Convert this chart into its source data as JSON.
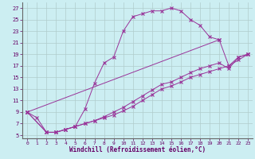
{
  "xlabel": "Windchill (Refroidissement éolien,°C)",
  "xlim": [
    -0.5,
    23.5
  ],
  "ylim": [
    4.5,
    28
  ],
  "yticks": [
    5,
    7,
    9,
    11,
    13,
    15,
    17,
    19,
    21,
    23,
    25,
    27
  ],
  "xticks": [
    0,
    1,
    2,
    3,
    4,
    5,
    6,
    7,
    8,
    9,
    10,
    11,
    12,
    13,
    14,
    15,
    16,
    17,
    18,
    19,
    20,
    21,
    22,
    23
  ],
  "bg_color": "#cceef2",
  "line_color": "#993399",
  "grid_color": "#b0cccc",
  "lines": [
    {
      "x": [
        0,
        1,
        2,
        3,
        4,
        5,
        6,
        7,
        8,
        9,
        10,
        11,
        12,
        13,
        14,
        15,
        16,
        17,
        18,
        19,
        20
      ],
      "y": [
        9,
        8,
        5.5,
        5.5,
        6.0,
        6.5,
        9.5,
        14.0,
        17.5,
        18.5,
        23.0,
        25.5,
        26.0,
        26.5,
        26.5,
        27.0,
        26.5,
        25.0,
        24.0,
        22.0,
        21.5
      ]
    },
    {
      "x": [
        0,
        2,
        3,
        4,
        5,
        6,
        7,
        8,
        9,
        10,
        11,
        12,
        13,
        14,
        15,
        16,
        17,
        18,
        19,
        20,
        21,
        22,
        23
      ],
      "y": [
        9,
        5.5,
        5.5,
        6.0,
        6.5,
        7.0,
        7.5,
        8.0,
        8.5,
        9.2,
        10.0,
        11.0,
        12.0,
        13.0,
        13.5,
        14.2,
        15.0,
        15.5,
        16.0,
        16.5,
        17.0,
        18.0,
        19.0
      ]
    },
    {
      "x": [
        0,
        2,
        3,
        4,
        5,
        6,
        7,
        8,
        9,
        10,
        11,
        12,
        13,
        14,
        15,
        16,
        17,
        18,
        19,
        20,
        21,
        22,
        23
      ],
      "y": [
        9,
        5.5,
        5.5,
        6.0,
        6.5,
        7.0,
        7.5,
        8.2,
        9.0,
        9.8,
        10.8,
        11.8,
        12.8,
        13.8,
        14.2,
        15.0,
        15.8,
        16.5,
        17.0,
        17.5,
        16.5,
        18.5,
        19.0
      ]
    },
    {
      "x": [
        0,
        20,
        21,
        22,
        23
      ],
      "y": [
        9,
        21.5,
        17.0,
        18.5,
        19.0
      ]
    }
  ]
}
